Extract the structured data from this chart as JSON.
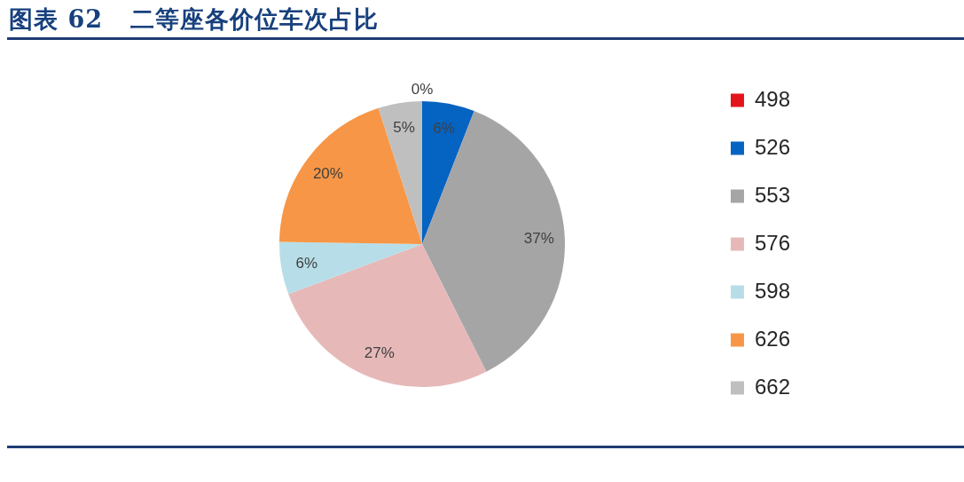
{
  "chart_data": {
    "type": "pie",
    "title": "图表 62   二等座各价位车次占比",
    "categories": [
      "498",
      "526",
      "553",
      "576",
      "598",
      "626",
      "662"
    ],
    "values": [
      0,
      6,
      37,
      27,
      6,
      20,
      5
    ],
    "colors": [
      "#e3141b",
      "#0563c1",
      "#a5a5a5",
      "#e6b9b8",
      "#b7dee8",
      "#f79646",
      "#bfbfbf"
    ],
    "value_labels": [
      "0%",
      "6%",
      "37%",
      "27%",
      "6%",
      "20%",
      "5%"
    ],
    "legend": "right"
  }
}
